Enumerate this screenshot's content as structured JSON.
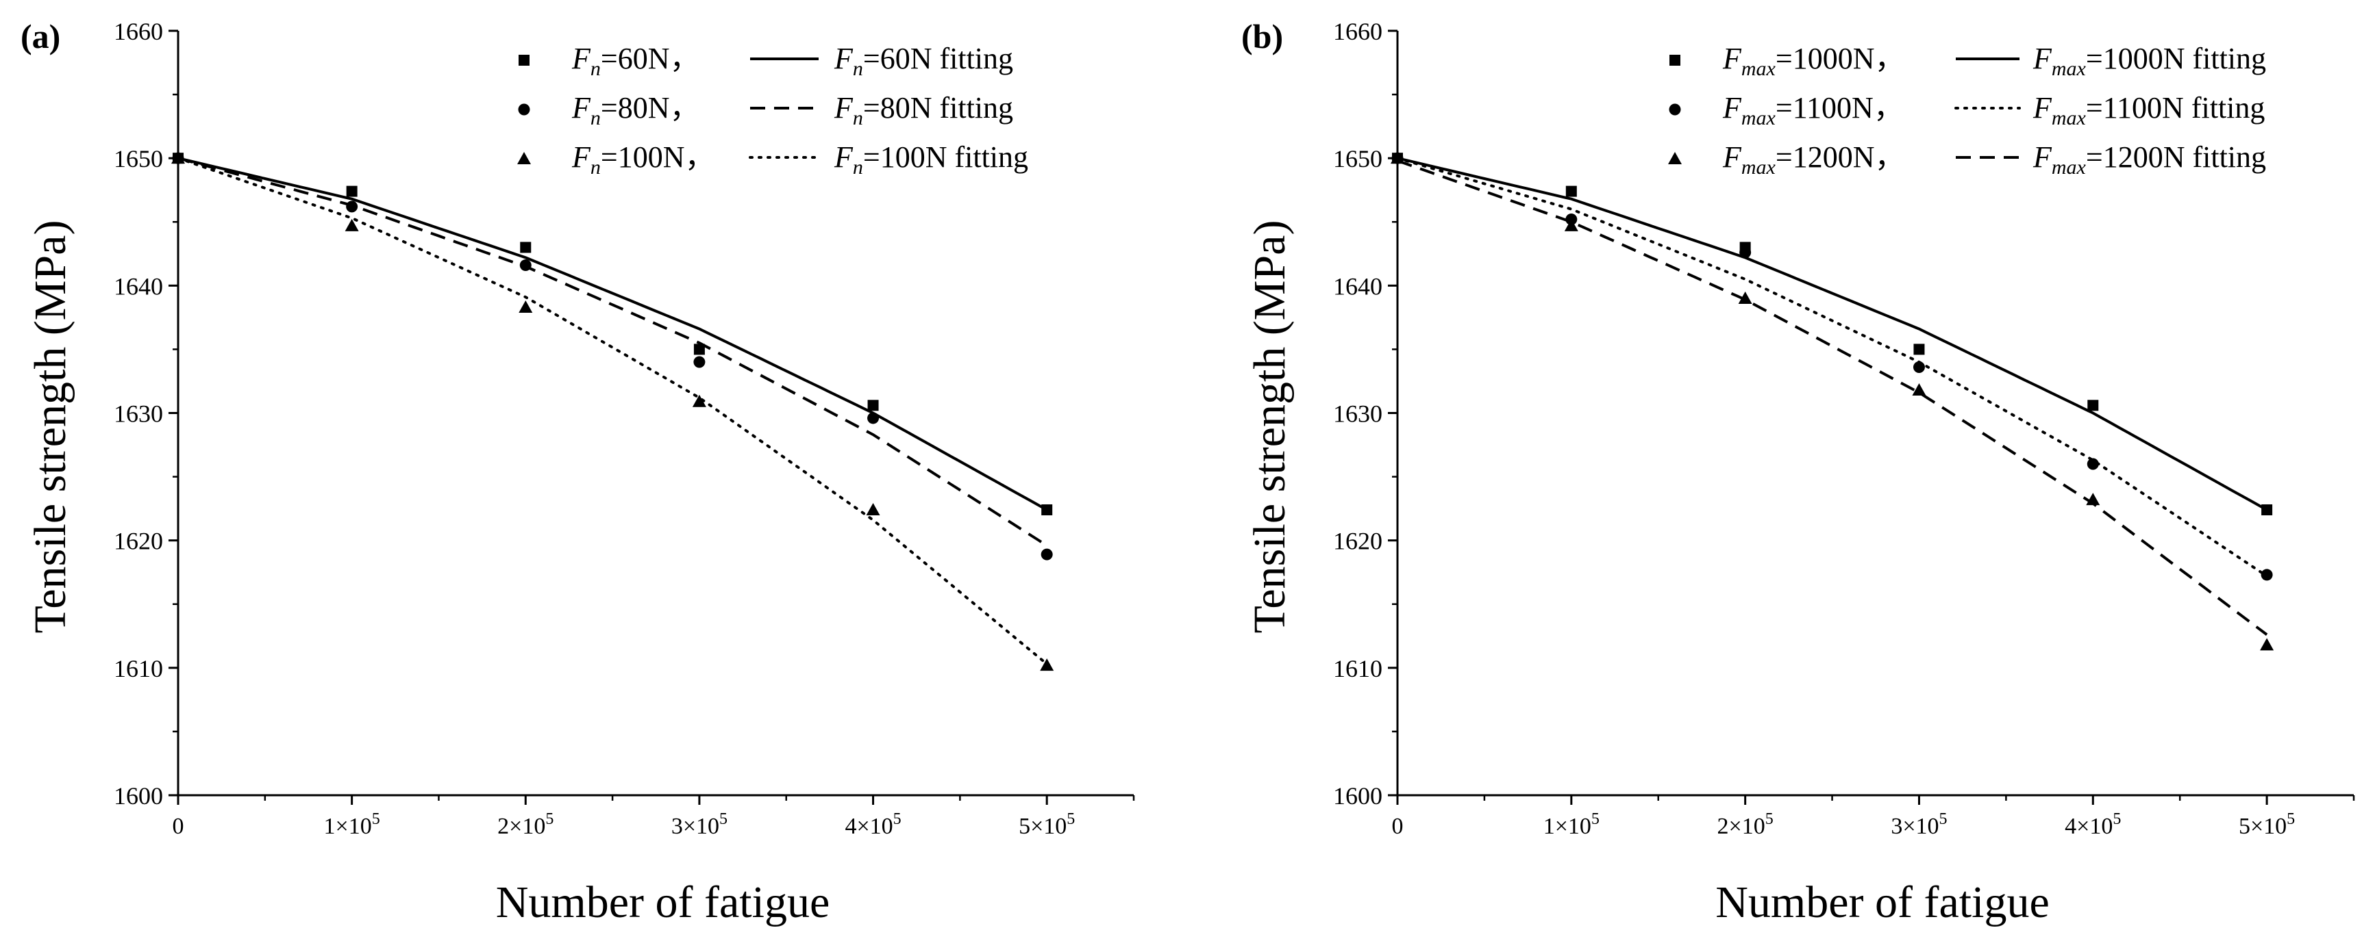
{
  "chart_data": [
    {
      "panel_label": "(a)",
      "type": "scatter",
      "xlabel": "Number of fatigue",
      "ylabel": "Tensile strength (MPa)",
      "xlim": [
        0,
        550000
      ],
      "ylim": [
        1600,
        1660
      ],
      "x_ticks": [
        {
          "value": 0,
          "label": "0"
        },
        {
          "value": 100000,
          "label": "1×10",
          "exp": "5"
        },
        {
          "value": 200000,
          "label": "2×10",
          "exp": "5"
        },
        {
          "value": 300000,
          "label": "3×10",
          "exp": "5"
        },
        {
          "value": 400000,
          "label": "4×10",
          "exp": "5"
        },
        {
          "value": 500000,
          "label": "5×10",
          "exp": "5"
        }
      ],
      "y_ticks": [
        1600,
        1610,
        1620,
        1630,
        1640,
        1650,
        1660
      ],
      "legend_position": "top-right",
      "series": [
        {
          "name": "F_n=60N",
          "sym": "F",
          "sub": "n",
          "rest": "=60N，",
          "fit_rest": "=60N fitting",
          "marker": "square",
          "line": "solid",
          "x": [
            0,
            100000,
            200000,
            300000,
            400000,
            500000
          ],
          "y": [
            1650.0,
            1647.4,
            1643.0,
            1635.0,
            1630.6,
            1622.4
          ],
          "fit_y": [
            1650.0,
            1646.8,
            1642.2,
            1636.6,
            1630.0,
            1622.4
          ]
        },
        {
          "name": "F_n=80N",
          "sym": "F",
          "sub": "n",
          "rest": "=80N，",
          "fit_rest": "=80N fitting",
          "marker": "circle",
          "line": "dashed",
          "x": [
            0,
            100000,
            200000,
            300000,
            400000,
            500000
          ],
          "y": [
            1650.0,
            1646.2,
            1641.6,
            1634.0,
            1629.6,
            1618.9
          ],
          "fit_y": [
            1650.0,
            1646.3,
            1641.5,
            1635.5,
            1628.3,
            1619.6
          ]
        },
        {
          "name": "F_n=100N",
          "sym": "F",
          "sub": "n",
          "rest": "=100N，",
          "fit_rest": "=100N fitting",
          "marker": "triangle",
          "line": "dotted",
          "x": [
            0,
            100000,
            200000,
            300000,
            400000,
            500000
          ],
          "y": [
            1650.0,
            1644.7,
            1638.3,
            1630.9,
            1622.4,
            1610.2
          ],
          "fit_y": [
            1650.0,
            1645.3,
            1639.1,
            1631.2,
            1621.6,
            1610.3
          ]
        }
      ]
    },
    {
      "panel_label": "(b)",
      "type": "scatter",
      "xlabel": "Number of fatigue",
      "ylabel": "Tensile strength (MPa)",
      "xlim": [
        0,
        550000
      ],
      "ylim": [
        1600,
        1660
      ],
      "x_ticks": [
        {
          "value": 0,
          "label": "0"
        },
        {
          "value": 100000,
          "label": "1×10",
          "exp": "5"
        },
        {
          "value": 200000,
          "label": "2×10",
          "exp": "5"
        },
        {
          "value": 300000,
          "label": "3×10",
          "exp": "5"
        },
        {
          "value": 400000,
          "label": "4×10",
          "exp": "5"
        },
        {
          "value": 500000,
          "label": "5×10",
          "exp": "5"
        }
      ],
      "y_ticks": [
        1600,
        1610,
        1620,
        1630,
        1640,
        1650,
        1660
      ],
      "legend_position": "top-right",
      "series": [
        {
          "name": "F_max=1000N",
          "sym": "F",
          "sub": "max",
          "rest": "=1000N，",
          "fit_rest": "=1000N fitting",
          "marker": "square",
          "line": "solid",
          "x": [
            0,
            100000,
            200000,
            300000,
            400000,
            500000
          ],
          "y": [
            1650.0,
            1647.4,
            1643.0,
            1635.0,
            1630.6,
            1622.4
          ],
          "fit_y": [
            1650.0,
            1646.8,
            1642.2,
            1636.6,
            1630.0,
            1622.4
          ]
        },
        {
          "name": "F_max=1100N",
          "sym": "F",
          "sub": "max",
          "rest": "=1100N，",
          "fit_rest": "=1100N fitting",
          "marker": "circle",
          "line": "dotted",
          "x": [
            0,
            100000,
            200000,
            300000,
            400000,
            500000
          ],
          "y": [
            1650.0,
            1645.2,
            1642.6,
            1633.6,
            1626.0,
            1617.3
          ],
          "fit_y": [
            1650.0,
            1646.0,
            1640.5,
            1634.0,
            1626.3,
            1617.2
          ]
        },
        {
          "name": "F_max=1200N",
          "sym": "F",
          "sub": "max",
          "rest": "=1200N，",
          "fit_rest": "=1200N fitting",
          "marker": "triangle",
          "line": "dashed",
          "x": [
            0,
            100000,
            200000,
            300000,
            400000,
            500000
          ],
          "y": [
            1650.0,
            1644.7,
            1639.0,
            1631.8,
            1623.2,
            1611.8
          ],
          "fit_y": [
            1649.8,
            1645.0,
            1638.9,
            1631.6,
            1622.9,
            1612.6
          ]
        }
      ]
    }
  ]
}
